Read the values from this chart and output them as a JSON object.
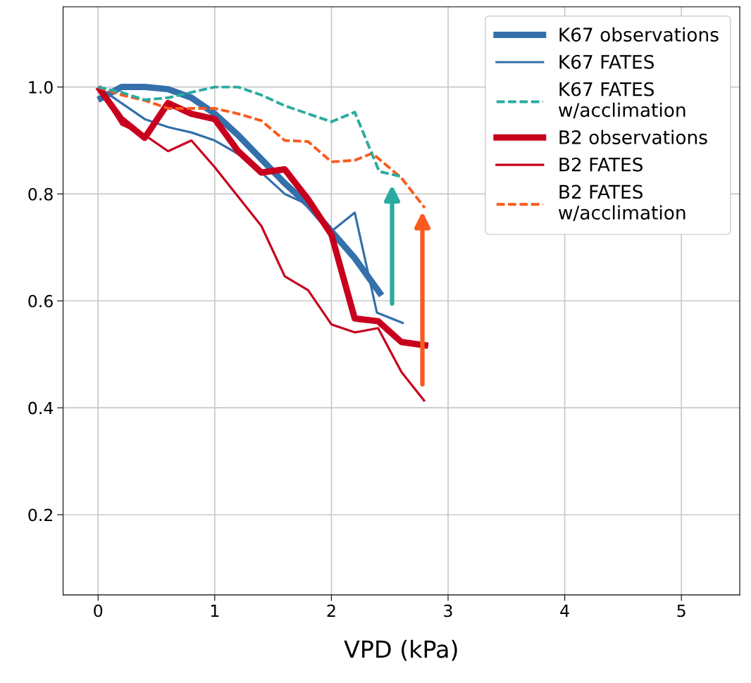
{
  "chart_data": {
    "type": "line",
    "xlabel": "VPD (kPa)",
    "xlim": [
      -0.3,
      5.5
    ],
    "ylim": [
      0.05,
      1.15
    ],
    "xticks": [
      0,
      1,
      2,
      3,
      4,
      5
    ],
    "yticks": [
      {
        "value": 0.2,
        "label": "0.2"
      },
      {
        "value": 0.4,
        "label": "0.4"
      },
      {
        "value": 0.6,
        "label": "0.6"
      },
      {
        "value": 0.8,
        "label": "0.8"
      },
      {
        "value": 1.0,
        "label": "1.0"
      }
    ],
    "grid": true,
    "legend": "top right",
    "marker": "none",
    "series": [
      {
        "name": "K67 observations",
        "color": "#3470ab",
        "line_style": "solid",
        "x": [
          0,
          0.2,
          0.4,
          0.6,
          0.8,
          1.0,
          1.2,
          1.4,
          1.6,
          1.8,
          2.0,
          2.2,
          2.43
        ],
        "values": [
          0.976,
          1.0,
          1.0,
          0.996,
          0.98,
          0.95,
          0.91,
          0.865,
          0.82,
          0.78,
          0.73,
          0.68,
          0.61
        ]
      },
      {
        "name": "K67 FATES",
        "color": "#3470ab",
        "line_style": "solid",
        "x": [
          0,
          0.2,
          0.4,
          0.6,
          0.8,
          1.0,
          1.2,
          1.4,
          1.6,
          1.8,
          2.0,
          2.2,
          2.39,
          2.62
        ],
        "values": [
          1.0,
          0.97,
          0.94,
          0.925,
          0.915,
          0.9,
          0.875,
          0.84,
          0.8,
          0.78,
          0.73,
          0.765,
          0.578,
          0.558
        ]
      },
      {
        "name": "K67 FATES\nw/acclimation",
        "color": "#2aaaa0",
        "line_style": "dashed",
        "x": [
          0,
          0.2,
          0.4,
          0.6,
          0.8,
          1.0,
          1.2,
          1.4,
          1.6,
          1.8,
          2.0,
          2.2,
          2.41,
          2.59
        ],
        "values": [
          1.0,
          0.99,
          0.976,
          0.98,
          0.99,
          1.0,
          1.0,
          0.985,
          0.965,
          0.95,
          0.935,
          0.953,
          0.842,
          0.833
        ]
      },
      {
        "name": "B2 observations",
        "color": "#c8001e",
        "line_style": "solid",
        "x": [
          0,
          0.2,
          0.4,
          0.6,
          0.8,
          1.0,
          1.2,
          1.4,
          1.6,
          1.8,
          2.0,
          2.2,
          2.4,
          2.6,
          2.83
        ],
        "values": [
          1.0,
          0.94,
          0.905,
          0.97,
          0.95,
          0.94,
          0.88,
          0.84,
          0.846,
          0.79,
          0.724,
          0.567,
          0.562,
          0.523,
          0.516
        ]
      },
      {
        "name": "B2 FATES",
        "color": "#c8001e",
        "line_style": "solid",
        "x": [
          0,
          0.2,
          0.4,
          0.6,
          0.8,
          1.0,
          1.2,
          1.4,
          1.6,
          1.8,
          2.0,
          2.2,
          2.4,
          2.6,
          2.8
        ],
        "values": [
          1.0,
          0.93,
          0.91,
          0.88,
          0.9,
          0.85,
          0.795,
          0.74,
          0.646,
          0.62,
          0.556,
          0.541,
          0.549,
          0.467,
          0.412
        ]
      },
      {
        "name": "B2 FATES\nw/acclimation",
        "color": "#fb5a1e",
        "line_style": "dashed",
        "x": [
          0,
          0.2,
          0.4,
          0.6,
          0.8,
          1.0,
          1.2,
          1.4,
          1.6,
          1.8,
          2.0,
          2.2,
          2.35,
          2.6,
          2.8
        ],
        "values": [
          1.0,
          0.985,
          0.975,
          0.96,
          0.96,
          0.96,
          0.95,
          0.937,
          0.9,
          0.898,
          0.86,
          0.863,
          0.876,
          0.83,
          0.774
        ]
      }
    ]
  }
}
